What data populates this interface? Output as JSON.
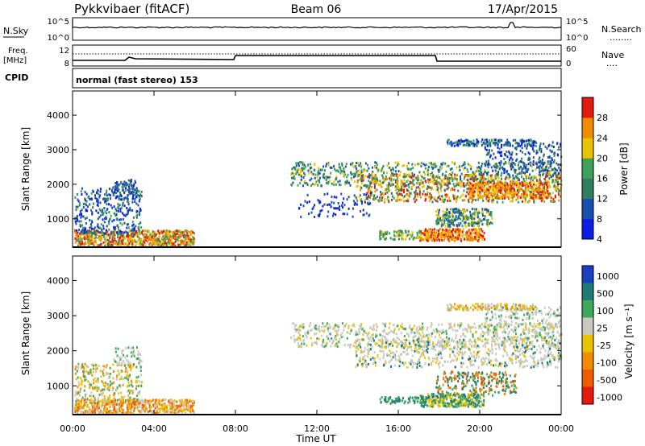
{
  "header": {
    "radar": "Pykkvibaer (fitACF)",
    "beam": "Beam 06",
    "date": "17/Apr/2015"
  },
  "noise_panel": {
    "left_label": "N.Sky",
    "left_ticks": [
      "10^5",
      "10^0"
    ],
    "right_ticks": [
      "10^5",
      "10^0"
    ],
    "right_label": "N.Search",
    "right_legend": "........"
  },
  "freq_panel": {
    "left_label_1": "Freq.",
    "left_label_2": "[MHz]",
    "left_ticks": [
      "12",
      "8"
    ],
    "right_ticks": [
      "60",
      "0"
    ],
    "right_label": "Nave",
    "right_legend": "...."
  },
  "cpid": {
    "label": "CPID",
    "text": "normal (fast stereo) 153"
  },
  "chart_data": [
    {
      "type": "heatmap",
      "title": "",
      "ylabel": "Slant Range [km]",
      "xlabel": "",
      "ylim": [
        180,
        4700
      ],
      "yticks": [
        "4000",
        "3000",
        "2000",
        "1000"
      ],
      "colorbar_label": "Power [dB]",
      "colorbar_ticks": [
        "28",
        "24",
        "20",
        "16",
        "12",
        "8",
        "4"
      ],
      "colors": [
        "#0a1ee6",
        "#1a4fb0",
        "#2e7f5f",
        "#3fa05a",
        "#e8c300",
        "#f08c00",
        "#e51a0e"
      ]
    },
    {
      "type": "heatmap",
      "title": "",
      "ylabel": "Slant Range [km]",
      "xlabel": "Time UT",
      "ylim": [
        180,
        4700
      ],
      "yticks": [
        "4000",
        "3000",
        "2000",
        "1000"
      ],
      "xticks": [
        "00:00",
        "04:00",
        "08:00",
        "12:00",
        "16:00",
        "20:00",
        "00:00"
      ],
      "colorbar_label": "Velocity [m s⁻¹]",
      "colorbar_ticks": [
        "1000",
        "500",
        "100",
        "25",
        "-25",
        "-100",
        "-500",
        "-1000"
      ],
      "colors": [
        "#1a3fc0",
        "#1f7a73",
        "#3fa85a",
        "#c8c8c0",
        "#e8c300",
        "#f08c00",
        "#f05a00",
        "#e51a0e"
      ]
    }
  ]
}
